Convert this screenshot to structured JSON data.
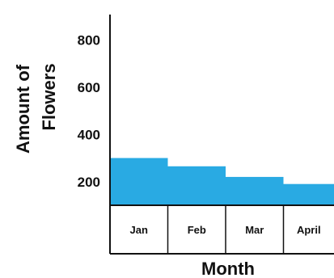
{
  "chart_data": {
    "type": "bar",
    "categories": [
      "Jan",
      "Feb",
      "Mar",
      "April"
    ],
    "values": [
      300,
      265,
      220,
      190
    ],
    "yticks": [
      200,
      400,
      600,
      800
    ],
    "ylim": [
      100,
      880
    ],
    "xlabel": "Month",
    "ylabel_line1": "Amount of",
    "ylabel_line2": "Flowers",
    "grid": false,
    "colors": {
      "bar": "#29aae3",
      "axis": "#111111"
    }
  }
}
